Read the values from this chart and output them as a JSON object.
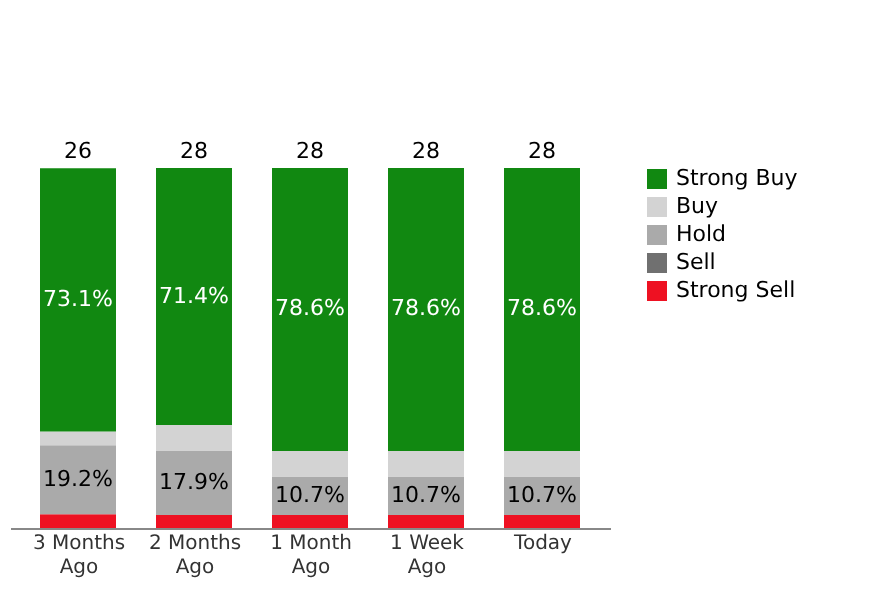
{
  "chart_data": {
    "type": "bar",
    "stacked": true,
    "categories": [
      "3 Months Ago",
      "2 Months Ago",
      "1 Month Ago",
      "1 Week Ago",
      "Today"
    ],
    "series": [
      {
        "name": "Strong Sell",
        "color": "#ee1122",
        "values": [
          3.8,
          3.6,
          3.6,
          3.6,
          3.6
        ],
        "value_labels": [
          null,
          null,
          null,
          null,
          null
        ]
      },
      {
        "name": "Sell",
        "color": "#707070",
        "values": [
          0,
          0,
          0,
          0,
          0
        ],
        "value_labels": [
          null,
          null,
          null,
          null,
          null
        ]
      },
      {
        "name": "Hold",
        "color": "#aaaaaa",
        "values": [
          19.2,
          17.9,
          10.7,
          10.7,
          10.7
        ],
        "value_labels": [
          "19.2%",
          "17.9%",
          "10.7%",
          "10.7%",
          "10.7%"
        ]
      },
      {
        "name": "Buy",
        "color": "#d3d3d3",
        "values": [
          3.8,
          7.1,
          7.1,
          7.1,
          7.1
        ],
        "value_labels": [
          null,
          null,
          null,
          null,
          null
        ]
      },
      {
        "name": "Strong Buy",
        "color": "#118811",
        "values": [
          73.1,
          71.4,
          78.6,
          78.6,
          78.6
        ],
        "value_labels": [
          "73.1%",
          "71.4%",
          "78.6%",
          "78.6%",
          "78.6%"
        ]
      }
    ],
    "annotations": [
      "26",
      "28",
      "28",
      "28",
      "28"
    ],
    "legend": "right",
    "grid": false
  }
}
